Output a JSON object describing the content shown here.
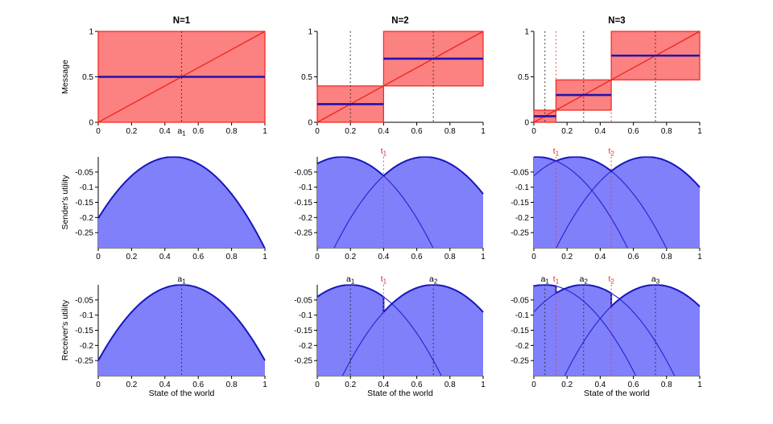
{
  "figure": {
    "background": "#ffffff",
    "colors": {
      "red_fill": "#fc8181",
      "red_line": "#f2221a",
      "red_dotted": "#f23b3b",
      "red_text": "#e82828",
      "blue_fill": "#8080fb",
      "blue_edge": "#1717bd",
      "blue_curve": "#2a2ad0",
      "blue_action": "#2013ad",
      "black_dotted": "#2b2b2b",
      "axis": "#000000",
      "text": "#000000"
    }
  },
  "chart_data": [
    {
      "id": "message-n1",
      "type": "step",
      "grid": [
        0,
        0
      ],
      "title": "N=1",
      "ylabel": "Message",
      "x_range": [
        0,
        1
      ],
      "y_range": [
        0,
        1
      ],
      "x_ticks": [
        0,
        0.2,
        0.4,
        0.6,
        0.8,
        1
      ],
      "x_tick_labels": [
        "0",
        "0.2",
        "0.4",
        "0.6",
        "0.8",
        "1"
      ],
      "y_ticks": [
        0,
        0.5,
        1
      ],
      "y_tick_labels": [
        "0",
        "0.5",
        "1"
      ],
      "actions": [
        0.5
      ],
      "thresholds": [],
      "top_labels": [],
      "below_axis_labels": [
        {
          "base": "a",
          "sub": "1",
          "x": 0.5,
          "color": "black"
        }
      ]
    },
    {
      "id": "message-n2",
      "type": "step",
      "grid": [
        0,
        1
      ],
      "title": "N=2",
      "x_range": [
        0,
        1
      ],
      "y_range": [
        0,
        1
      ],
      "x_ticks": [
        0,
        0.2,
        0.4,
        0.6,
        0.8,
        1
      ],
      "x_tick_labels": [
        "0",
        "0.2",
        "0.4",
        "0.6",
        "0.8",
        "1"
      ],
      "y_ticks": [
        0,
        0.5,
        1
      ],
      "y_tick_labels": [
        "0",
        "0.5",
        "1"
      ],
      "actions": [
        0.2,
        0.7
      ],
      "thresholds": [
        0.4
      ],
      "top_labels": [],
      "below_axis_labels": []
    },
    {
      "id": "message-n3",
      "type": "step",
      "grid": [
        0,
        2
      ],
      "title": "N=3",
      "x_range": [
        0,
        1
      ],
      "y_range": [
        0,
        1
      ],
      "x_ticks": [
        0,
        0.2,
        0.4,
        0.6,
        0.8,
        1
      ],
      "x_tick_labels": [
        "0",
        "0.2",
        "0.4",
        "0.6",
        "0.8",
        "1"
      ],
      "y_ticks": [
        0,
        0.5,
        1
      ],
      "y_tick_labels": [
        "0",
        "0.5",
        "1"
      ],
      "actions": [
        0.0667,
        0.3,
        0.7333
      ],
      "thresholds": [
        0.1333,
        0.4667
      ],
      "top_labels": [],
      "below_axis_labels": []
    },
    {
      "id": "sender-n1",
      "type": "utility",
      "role": "sender",
      "grid": [
        1,
        0
      ],
      "ylabel": "Sender's utility",
      "bias": 0.05,
      "x_range": [
        0,
        1
      ],
      "y_range": [
        -0.3,
        0
      ],
      "x_ticks": [
        0,
        0.2,
        0.4,
        0.6,
        0.8,
        1
      ],
      "x_tick_labels": [
        "0",
        "0.2",
        "0.4",
        "0.6",
        "0.8",
        "1"
      ],
      "y_ticks": [
        -0.05,
        -0.1,
        -0.15,
        -0.2,
        -0.25
      ],
      "y_tick_labels": [
        "-0.05",
        "-0.1",
        "-0.15",
        "-0.2",
        "-0.25"
      ],
      "actions": [
        0.5
      ],
      "thresholds": [],
      "top_labels": [],
      "below_axis_labels": []
    },
    {
      "id": "sender-n2",
      "type": "utility",
      "role": "sender",
      "grid": [
        1,
        1
      ],
      "bias": 0.05,
      "x_range": [
        0,
        1
      ],
      "y_range": [
        -0.3,
        0
      ],
      "x_ticks": [
        0,
        0.2,
        0.4,
        0.6,
        0.8,
        1
      ],
      "x_tick_labels": [
        "0",
        "0.2",
        "0.4",
        "0.6",
        "0.8",
        "1"
      ],
      "y_ticks": [
        -0.05,
        -0.1,
        -0.15,
        -0.2,
        -0.25
      ],
      "y_tick_labels": [
        "-0.05",
        "-0.1",
        "-0.15",
        "-0.2",
        "-0.25"
      ],
      "actions": [
        0.2,
        0.7
      ],
      "thresholds": [
        0.4
      ],
      "top_labels": [
        {
          "base": "t",
          "sub": "1",
          "x": 0.4,
          "color": "red"
        }
      ],
      "below_axis_labels": []
    },
    {
      "id": "sender-n3",
      "type": "utility",
      "role": "sender",
      "grid": [
        1,
        2
      ],
      "bias": 0.05,
      "x_range": [
        0,
        1
      ],
      "y_range": [
        -0.3,
        0
      ],
      "x_ticks": [
        0,
        0.2,
        0.4,
        0.6,
        0.8,
        1
      ],
      "x_tick_labels": [
        "0",
        "0.2",
        "0.4",
        "0.6",
        "0.8",
        "1"
      ],
      "y_ticks": [
        -0.05,
        -0.1,
        -0.15,
        -0.2,
        -0.25
      ],
      "y_tick_labels": [
        "-0.05",
        "-0.1",
        "-0.15",
        "-0.2",
        "-0.25"
      ],
      "actions": [
        0.0667,
        0.3,
        0.7333
      ],
      "thresholds": [
        0.1333,
        0.4667
      ],
      "top_labels": [
        {
          "base": "t",
          "sub": "1",
          "x": 0.1333,
          "color": "red"
        },
        {
          "base": "t",
          "sub": "2",
          "x": 0.4667,
          "color": "red"
        }
      ],
      "below_axis_labels": []
    },
    {
      "id": "receiver-n1",
      "type": "utility",
      "role": "receiver",
      "grid": [
        2,
        0
      ],
      "ylabel": "Receiver's utility",
      "xlabel": "State of the world",
      "bias": 0,
      "x_range": [
        0,
        1
      ],
      "y_range": [
        -0.3,
        0
      ],
      "x_ticks": [
        0,
        0.2,
        0.4,
        0.6,
        0.8,
        1
      ],
      "x_tick_labels": [
        "0",
        "0.2",
        "0.4",
        "0.6",
        "0.8",
        "1"
      ],
      "y_ticks": [
        -0.05,
        -0.1,
        -0.15,
        -0.2,
        -0.25
      ],
      "y_tick_labels": [
        "-0.05",
        "-0.1",
        "-0.15",
        "-0.2",
        "-0.25"
      ],
      "actions": [
        0.5
      ],
      "thresholds": [],
      "top_labels": [
        {
          "base": "a",
          "sub": "1",
          "x": 0.5,
          "color": "black"
        }
      ],
      "below_axis_labels": []
    },
    {
      "id": "receiver-n2",
      "type": "utility",
      "role": "receiver",
      "grid": [
        2,
        1
      ],
      "xlabel": "State of the world",
      "bias": 0,
      "x_range": [
        0,
        1
      ],
      "y_range": [
        -0.3,
        0
      ],
      "x_ticks": [
        0,
        0.2,
        0.4,
        0.6,
        0.8,
        1
      ],
      "x_tick_labels": [
        "0",
        "0.2",
        "0.4",
        "0.6",
        "0.8",
        "1"
      ],
      "y_ticks": [
        -0.05,
        -0.1,
        -0.15,
        -0.2,
        -0.25
      ],
      "y_tick_labels": [
        "-0.05",
        "-0.1",
        "-0.15",
        "-0.2",
        "-0.25"
      ],
      "actions": [
        0.2,
        0.7
      ],
      "thresholds": [
        0.4
      ],
      "top_labels": [
        {
          "base": "a",
          "sub": "1",
          "x": 0.2,
          "color": "black"
        },
        {
          "base": "t",
          "sub": "1",
          "x": 0.4,
          "color": "red"
        },
        {
          "base": "a",
          "sub": "2",
          "x": 0.7,
          "color": "black"
        }
      ],
      "below_axis_labels": []
    },
    {
      "id": "receiver-n3",
      "type": "utility",
      "role": "receiver",
      "grid": [
        2,
        2
      ],
      "xlabel": "State of the world",
      "bias": 0,
      "x_range": [
        0,
        1
      ],
      "y_range": [
        -0.3,
        0
      ],
      "x_ticks": [
        0,
        0.2,
        0.4,
        0.6,
        0.8,
        1
      ],
      "x_tick_labels": [
        "0",
        "0.2",
        "0.4",
        "0.6",
        "0.8",
        "1"
      ],
      "y_ticks": [
        -0.05,
        -0.1,
        -0.15,
        -0.2,
        -0.25
      ],
      "y_tick_labels": [
        "-0.05",
        "-0.1",
        "-0.15",
        "-0.2",
        "-0.25"
      ],
      "actions": [
        0.0667,
        0.3,
        0.7333
      ],
      "thresholds": [
        0.1333,
        0.4667
      ],
      "top_labels": [
        {
          "base": "a",
          "sub": "1",
          "x": 0.0667,
          "color": "black"
        },
        {
          "base": "t",
          "sub": "1",
          "x": 0.1333,
          "color": "red"
        },
        {
          "base": "a",
          "sub": "2",
          "x": 0.3,
          "color": "black"
        },
        {
          "base": "t",
          "sub": "2",
          "x": 0.4667,
          "color": "red"
        },
        {
          "base": "a",
          "sub": "3",
          "x": 0.7333,
          "color": "black"
        }
      ],
      "below_axis_labels": []
    }
  ]
}
